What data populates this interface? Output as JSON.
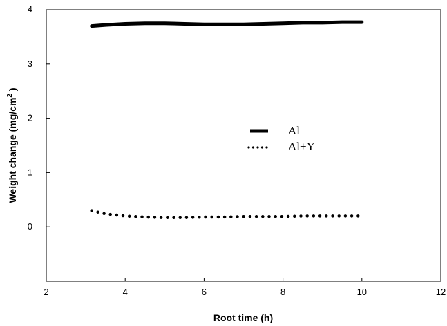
{
  "chart_data": {
    "type": "line",
    "xlabel": "Root time (h)",
    "ylabel_main": "Weight change (mg/cm",
    "ylabel_sup": "2",
    "ylabel_end": " )",
    "xlim": [
      2,
      12
    ],
    "ylim": [
      -1,
      4
    ],
    "x_ticks": [
      2,
      4,
      6,
      8,
      10,
      12
    ],
    "y_ticks": [
      0,
      1,
      2,
      3,
      4
    ],
    "grid": false,
    "legend_position": "center-right",
    "series": [
      {
        "name": "Al",
        "style": "solid-thick",
        "color": "#000000",
        "x": [
          3.15,
          3.5,
          4.0,
          4.5,
          5.0,
          5.5,
          6.0,
          6.5,
          7.0,
          7.5,
          8.0,
          8.5,
          9.0,
          9.5,
          10.0
        ],
        "y": [
          3.7,
          3.72,
          3.74,
          3.75,
          3.75,
          3.74,
          3.73,
          3.73,
          3.73,
          3.74,
          3.75,
          3.76,
          3.76,
          3.77,
          3.77
        ]
      },
      {
        "name": "Al+Y",
        "style": "dotted",
        "color": "#000000",
        "x": [
          3.15,
          3.5,
          4.0,
          4.5,
          5.0,
          5.5,
          6.0,
          6.5,
          7.0,
          7.5,
          8.0,
          8.5,
          9.0,
          9.5,
          10.0
        ],
        "y": [
          0.3,
          0.24,
          0.2,
          0.18,
          0.17,
          0.17,
          0.18,
          0.18,
          0.19,
          0.19,
          0.19,
          0.2,
          0.2,
          0.2,
          0.2
        ]
      }
    ]
  }
}
